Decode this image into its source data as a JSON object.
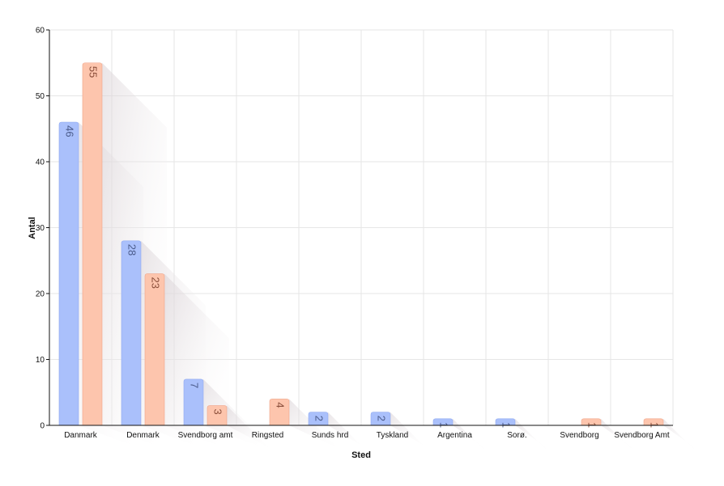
{
  "chart_data": {
    "type": "bar",
    "xlabel": "Sted",
    "ylabel": "Antal",
    "ylim": [
      0,
      60
    ],
    "yticks": [
      0,
      10,
      20,
      30,
      40,
      50,
      60
    ],
    "grid": true,
    "categories": [
      "Danmark",
      "Denmark",
      "Svendborg amt",
      "Ringsted",
      "Sunds hrd",
      "Tyskland",
      "Argentina",
      "Sorø.",
      "Svendborg",
      "Svendborg Amt"
    ],
    "series": [
      {
        "values": [
          46,
          28,
          7,
          null,
          2,
          2,
          1,
          1,
          null,
          null
        ]
      },
      {
        "values": [
          55,
          23,
          3,
          4,
          null,
          null,
          null,
          null,
          1,
          1
        ]
      }
    ],
    "colors": {
      "series0_fill": "#aac0fb",
      "series0_stroke": "#8fa9f0",
      "series0_label": "#4a5a8a",
      "series1_fill": "#fdc5ad",
      "series1_stroke": "#f0a488",
      "series1_label": "#8a4e3a",
      "grid": "#e6e6e6",
      "axis": "#111111"
    }
  }
}
